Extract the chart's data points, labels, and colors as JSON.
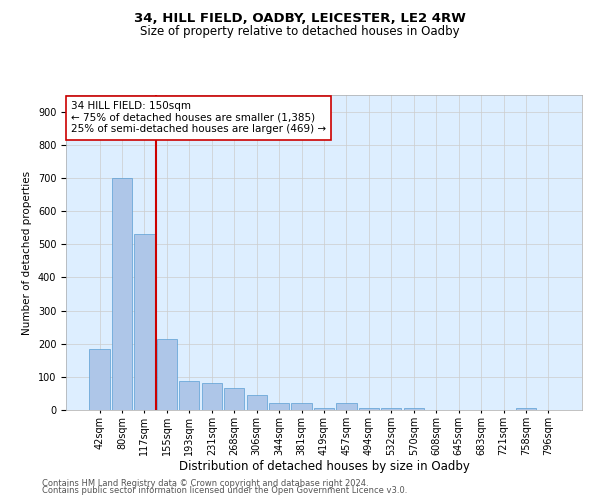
{
  "title1": "34, HILL FIELD, OADBY, LEICESTER, LE2 4RW",
  "title2": "Size of property relative to detached houses in Oadby",
  "xlabel": "Distribution of detached houses by size in Oadby",
  "ylabel": "Number of detached properties",
  "categories": [
    "42sqm",
    "80sqm",
    "117sqm",
    "155sqm",
    "193sqm",
    "231sqm",
    "268sqm",
    "306sqm",
    "344sqm",
    "381sqm",
    "419sqm",
    "457sqm",
    "494sqm",
    "532sqm",
    "570sqm",
    "608sqm",
    "645sqm",
    "683sqm",
    "721sqm",
    "758sqm",
    "796sqm"
  ],
  "values": [
    185,
    700,
    530,
    215,
    88,
    80,
    65,
    45,
    22,
    22,
    5,
    22,
    5,
    5,
    5,
    0,
    0,
    0,
    0,
    5,
    0
  ],
  "bar_color": "#aec6e8",
  "bar_edge_color": "#5a9fd4",
  "vline_color": "#cc0000",
  "annotation_text": "34 HILL FIELD: 150sqm\n← 75% of detached houses are smaller (1,385)\n25% of semi-detached houses are larger (469) →",
  "annotation_box_color": "#ffffff",
  "annotation_box_edge": "#cc0000",
  "footer1": "Contains HM Land Registry data © Crown copyright and database right 2024.",
  "footer2": "Contains public sector information licensed under the Open Government Licence v3.0.",
  "bg_color": "#ffffff",
  "plot_bg_color": "#ddeeff",
  "grid_color": "#cccccc",
  "ylim": [
    0,
    950
  ],
  "yticks": [
    0,
    100,
    200,
    300,
    400,
    500,
    600,
    700,
    800,
    900
  ],
  "title1_fontsize": 9.5,
  "title2_fontsize": 8.5,
  "xlabel_fontsize": 8.5,
  "ylabel_fontsize": 7.5,
  "tick_fontsize": 7,
  "annotation_fontsize": 7.5,
  "footer_fontsize": 6
}
